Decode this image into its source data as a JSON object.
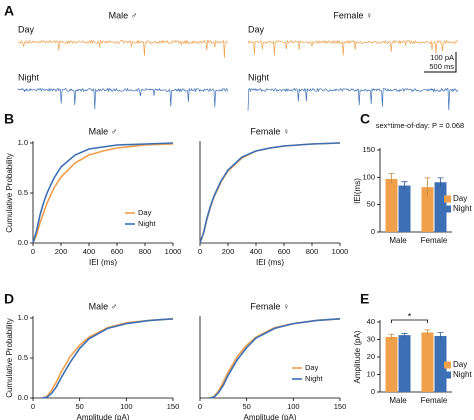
{
  "chart_data": [
    {
      "type": "traces",
      "label": "A",
      "columns": [
        "Male ♂",
        "Female ♀"
      ],
      "rows": [
        {
          "name": "Day",
          "color": "#f0a04b"
        },
        {
          "name": "Night",
          "color": "#3d6fb5"
        }
      ],
      "scale_bar": [
        "100 pA",
        "500 ms"
      ]
    },
    {
      "type": "line",
      "label": "B",
      "title": "Male ♂",
      "xlabel": "IEI (ms)",
      "ylabel": "Cumulative Probability",
      "xlim": [
        0,
        1000
      ],
      "xticks": [
        0,
        200,
        400,
        600,
        800,
        1000
      ],
      "ylim": [
        0,
        1
      ],
      "yticks": [
        {
          "value": 0,
          "label": "0.0"
        },
        {
          "value": 0.5,
          "label": "0.5"
        },
        {
          "value": 1,
          "label": "1.0"
        }
      ],
      "x": [
        0,
        25,
        50,
        75,
        100,
        150,
        200,
        300,
        400,
        500,
        600,
        800,
        1000
      ],
      "series": [
        {
          "name": "Day",
          "color": "#f0a04b",
          "values": [
            0,
            0.08,
            0.2,
            0.3,
            0.4,
            0.55,
            0.66,
            0.8,
            0.88,
            0.92,
            0.95,
            0.98,
            0.99
          ]
        },
        {
          "name": "Night",
          "color": "#3d6fb5",
          "values": [
            0,
            0.12,
            0.28,
            0.4,
            0.5,
            0.65,
            0.76,
            0.88,
            0.94,
            0.96,
            0.98,
            0.99,
            1
          ]
        }
      ],
      "legend": "lower right"
    },
    {
      "type": "line",
      "title": "Female ♀",
      "xlabel": "IEI (ms)",
      "xlim": [
        0,
        1000
      ],
      "xticks": [
        0,
        200,
        400,
        600,
        800,
        1000
      ],
      "ylim": [
        0,
        1
      ],
      "x": [
        0,
        25,
        50,
        75,
        100,
        150,
        200,
        300,
        400,
        500,
        600,
        800,
        1000
      ],
      "series": [
        {
          "name": "Day",
          "color": "#f0a04b",
          "values": [
            0,
            0.1,
            0.24,
            0.36,
            0.46,
            0.61,
            0.72,
            0.85,
            0.92,
            0.95,
            0.97,
            0.99,
            1
          ]
        },
        {
          "name": "Night",
          "color": "#3d6fb5",
          "values": [
            0,
            0.1,
            0.25,
            0.37,
            0.47,
            0.62,
            0.73,
            0.86,
            0.92,
            0.95,
            0.97,
            0.99,
            1
          ]
        }
      ]
    },
    {
      "type": "bar",
      "label": "C",
      "annotation": "sex*time-of-day: P = 0.068",
      "ylabel": "IEI(ms)",
      "categories": [
        "Male",
        "Female"
      ],
      "ylim": [
        0,
        150
      ],
      "yticks": [
        0,
        50,
        100,
        150
      ],
      "series": [
        {
          "name": "Day",
          "color": "#f0a04b",
          "values": [
            97,
            82
          ],
          "errors": [
            10,
            17
          ]
        },
        {
          "name": "Night",
          "color": "#3d6fb5",
          "values": [
            85,
            91
          ],
          "errors": [
            7,
            8
          ]
        }
      ],
      "legend": "right"
    },
    {
      "type": "line",
      "label": "D",
      "title": "Male ♂",
      "xlabel": "Amplitude (pA)",
      "ylabel": "Cumulative Probability",
      "xlim": [
        0,
        150
      ],
      "xticks": [
        0,
        50,
        100,
        150
      ],
      "ylim": [
        0,
        1
      ],
      "yticks": [
        {
          "value": 0,
          "label": "0.0"
        },
        {
          "value": 0.5,
          "label": "0.5"
        },
        {
          "value": 1,
          "label": "1.0"
        }
      ],
      "x": [
        10,
        15,
        20,
        25,
        30,
        40,
        50,
        60,
        80,
        100,
        125,
        150
      ],
      "series": [
        {
          "name": "Day",
          "color": "#f0a04b",
          "values": [
            0,
            0.02,
            0.1,
            0.2,
            0.32,
            0.52,
            0.66,
            0.76,
            0.88,
            0.94,
            0.97,
            0.99
          ]
        },
        {
          "name": "Night",
          "color": "#3d6fb5",
          "values": [
            0,
            0.01,
            0.06,
            0.14,
            0.25,
            0.45,
            0.62,
            0.74,
            0.87,
            0.93,
            0.97,
            0.99
          ]
        }
      ]
    },
    {
      "type": "line",
      "title": "Female ♀",
      "xlabel": "Amplitude (pA)",
      "xlim": [
        0,
        150
      ],
      "xticks": [
        0,
        50,
        100,
        150
      ],
      "ylim": [
        0,
        1
      ],
      "x": [
        10,
        15,
        20,
        25,
        30,
        40,
        50,
        60,
        80,
        100,
        125,
        150
      ],
      "series": [
        {
          "name": "Day",
          "color": "#f0a04b",
          "values": [
            0,
            0.02,
            0.09,
            0.2,
            0.32,
            0.52,
            0.66,
            0.76,
            0.88,
            0.93,
            0.97,
            0.99
          ]
        },
        {
          "name": "Night",
          "color": "#3d6fb5",
          "values": [
            0,
            0.01,
            0.07,
            0.16,
            0.28,
            0.48,
            0.63,
            0.75,
            0.87,
            0.93,
            0.97,
            0.99
          ]
        }
      ],
      "legend": "lower right"
    },
    {
      "type": "bar",
      "label": "E",
      "significance": "*",
      "ylabel": "Amplitude (pA)",
      "categories": [
        "Male",
        "Female"
      ],
      "ylim": [
        0,
        40
      ],
      "yticks": [
        0,
        10,
        20,
        30,
        40
      ],
      "series": [
        {
          "name": "Day",
          "color": "#f0a04b",
          "values": [
            31.5,
            34
          ],
          "errors": [
            1.5,
            1.5
          ]
        },
        {
          "name": "Night",
          "color": "#3d6fb5",
          "values": [
            32.5,
            32
          ],
          "errors": [
            1,
            2
          ]
        }
      ],
      "legend": "right"
    }
  ]
}
